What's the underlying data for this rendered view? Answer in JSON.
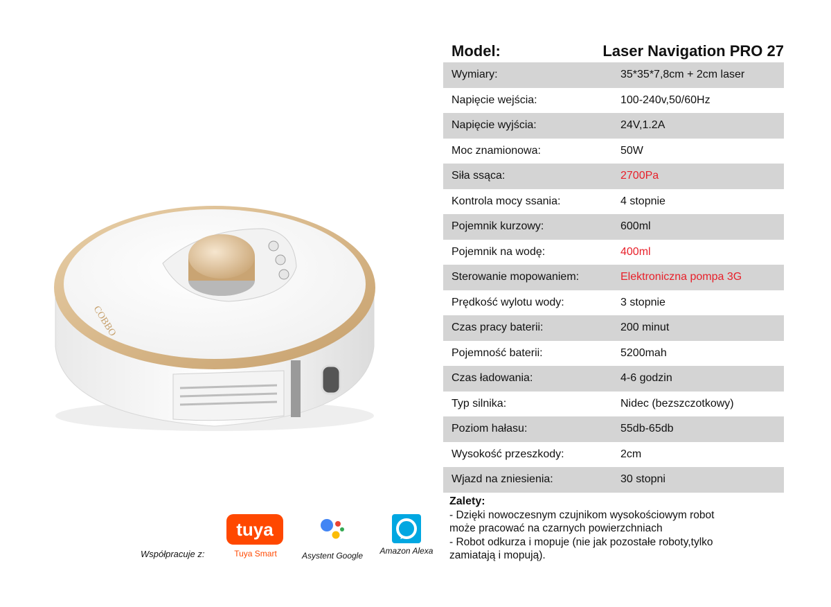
{
  "model": {
    "label": "Model:",
    "value": "Laser Navigation PRO 27"
  },
  "specs": [
    {
      "key": "Wymiary:",
      "value": "35*35*7,8cm + 2cm laser"
    },
    {
      "key": "Napięcie wejścia:",
      "value": "100-240v,50/60Hz"
    },
    {
      "key": "Napięcie wyjścia:",
      "value": "24V,1.2A"
    },
    {
      "key": "Moc znamionowa:",
      "value": "50W"
    },
    {
      "key": "Siła ssąca:",
      "value": "2700Pa"
    },
    {
      "key": "Kontrola mocy ssania:",
      "value": "4 stopnie"
    },
    {
      "key": "Pojemnik kurzowy:",
      "value": "600ml"
    },
    {
      "key": "Pojemnik na wodę:",
      "value": "400ml"
    },
    {
      "key": "Sterowanie mopowaniem:",
      "value": "Elektroniczna pompa 3G"
    },
    {
      "key": "Prędkość wylotu wody:",
      "value": "3 stopnie"
    },
    {
      "key": "Czas pracy baterii:",
      "value": "200 minut"
    },
    {
      "key": "Pojemność baterii:",
      "value": "5200mah"
    },
    {
      "key": "Czas ładowania:",
      "value": "4-6 godzin"
    },
    {
      "key": "Typ silnika:",
      "value": "Nidec (bezszczotkowy)"
    },
    {
      "key": "Poziom hałasu:",
      "value": "55db-65db"
    },
    {
      "key": "Wysokość przeszkody:",
      "value": "2cm"
    },
    {
      "key": "Wjazd na zniesienia:",
      "value": "30 stopni"
    }
  ],
  "advantages": {
    "title": "Zalety:",
    "lines": [
      "- Dzięki nowoczesnym czujnikom wysokościowym robot",
      "może pracować na czarnych powierzchniach",
      "- Robot odkurza i mopuje (nie jak pozostałe roboty,tylko",
      "zamiatają i mopują)."
    ]
  },
  "cooperation": {
    "label": "Współpracuje z:",
    "tuya_logo_text": "tuya",
    "tuya_caption": "Tuya Smart",
    "google_caption": "Asystent Google",
    "alexa_caption": "Amazon Alexa"
  },
  "robot": {
    "brand_text": "COBBO"
  },
  "colors": {
    "highlight_red": "#e8202a",
    "row_shade": "#d4d4d4",
    "tuya_orange": "#ff4800",
    "alexa_blue": "#00a7e1",
    "robot_gold": "#d9b98f"
  }
}
